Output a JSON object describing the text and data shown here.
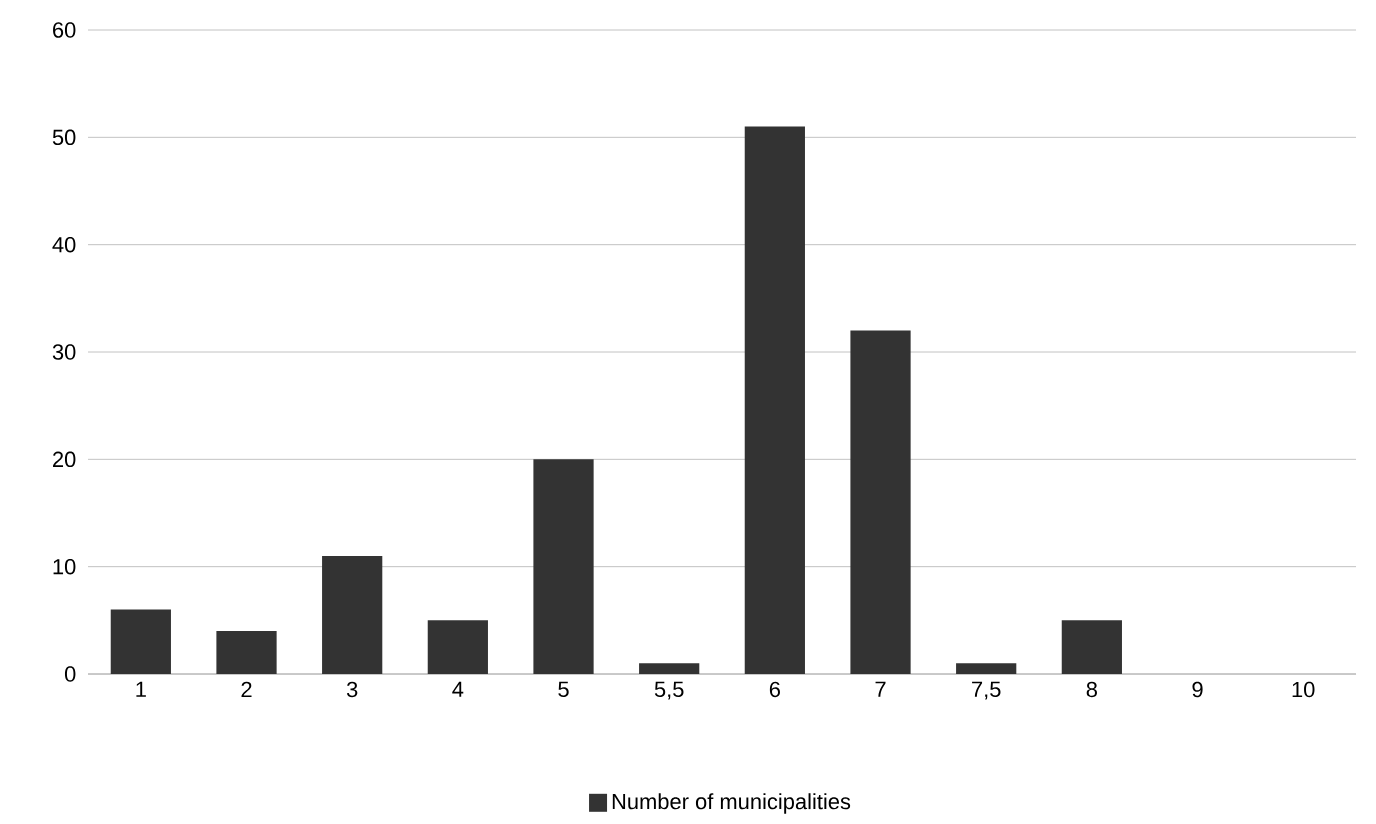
{
  "chart_data": {
    "type": "bar",
    "categories": [
      "1",
      "2",
      "3",
      "4",
      "5",
      "5,5",
      "6",
      "7",
      "7,5",
      "8",
      "9",
      "10"
    ],
    "series": [
      {
        "name": "Number of municipalities",
        "color": "#333333",
        "values": [
          6,
          4,
          11,
          5,
          20,
          1,
          51,
          32,
          1,
          5,
          0,
          0
        ]
      }
    ],
    "ylim": [
      0,
      60
    ],
    "yticks": [
      0,
      10,
      20,
      30,
      40,
      50,
      60
    ],
    "grid": "y",
    "legend": "bottom"
  }
}
